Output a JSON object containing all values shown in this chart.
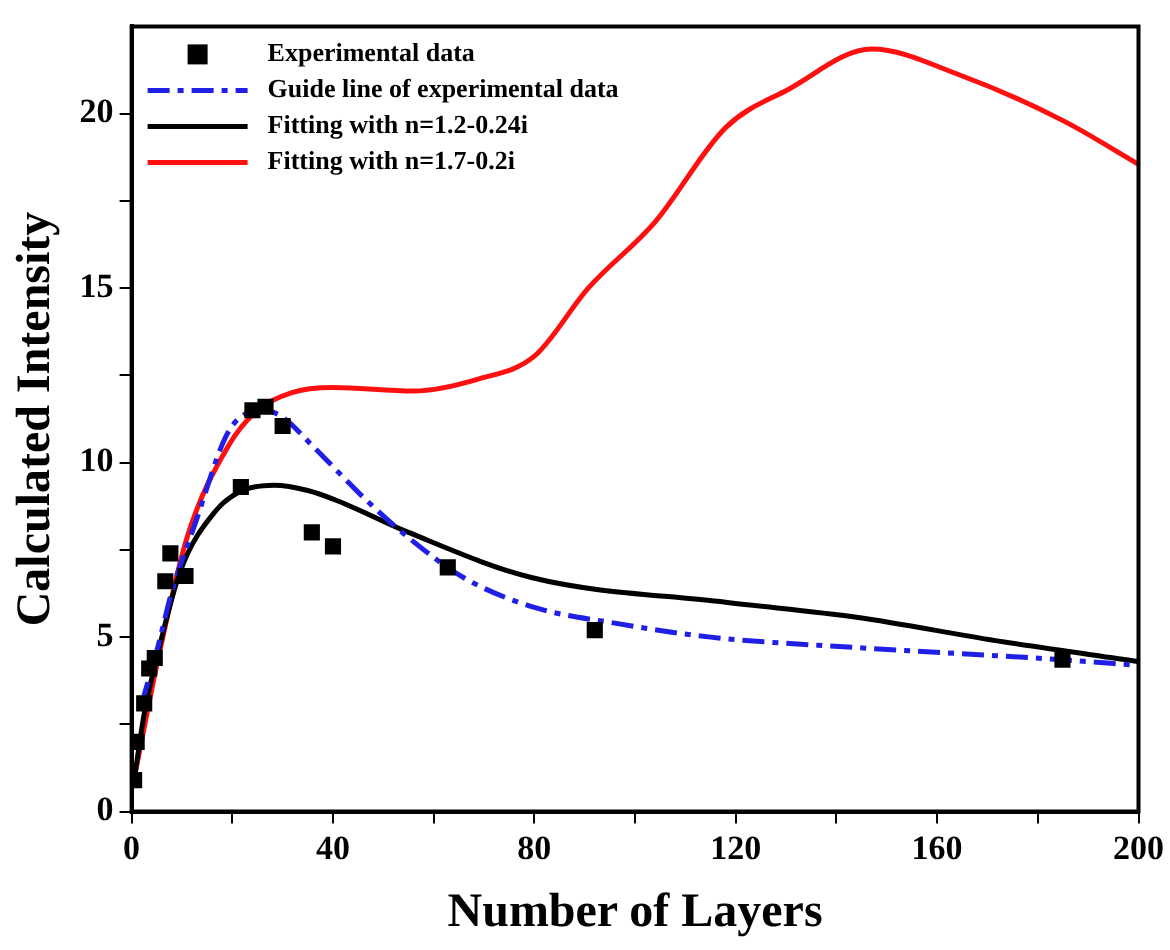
{
  "chart_data": {
    "type": "line",
    "xlabel": "Number of Layers",
    "ylabel": "Calculated Intensity",
    "xlim": [
      0,
      200
    ],
    "ylim": [
      0,
      22.5
    ],
    "xticks": [
      0,
      {
        "value": 20,
        "label": null
      },
      40,
      {
        "value": 60,
        "label": null
      },
      80,
      {
        "value": 100,
        "label": null
      },
      120,
      {
        "value": 140,
        "label": null
      },
      160,
      {
        "value": 180,
        "label": null
      },
      200
    ],
    "yticks": [
      0,
      {
        "value": 2.5,
        "label": null
      },
      5,
      {
        "value": 7.5,
        "label": null
      },
      10,
      {
        "value": 12.5,
        "label": null
      },
      15,
      {
        "value": 17.5,
        "label": null
      },
      20
    ],
    "grid": false,
    "legend": "top left",
    "series": [
      {
        "name": "Experimental data",
        "type": "scatter",
        "marker": "square",
        "color": "#000000",
        "x": [
          0.5,
          1,
          2.5,
          3.5,
          4.6,
          6.7,
          7.7,
          10.7,
          21.7,
          24,
          26.6,
          30,
          35.8,
          40,
          62.8,
          92,
          184.9
        ],
        "values": [
          0.9,
          2.0,
          3.1,
          4.1,
          4.4,
          6.6,
          7.4,
          6.75,
          9.3,
          11.5,
          11.6,
          11.05,
          8.0,
          7.6,
          7.0,
          5.2,
          4.35
        ]
      },
      {
        "name": "Guide line of experimental data",
        "line_style": "dashed",
        "marker": "none",
        "color": "#1f1fe6",
        "x": [
          2,
          5,
          8,
          12.5,
          19.3,
          26,
          30,
          35.8,
          46.8,
          55,
          66,
          80,
          96,
          115,
          144,
          185,
          199
        ],
        "values": [
          3.1,
          4.6,
          6.3,
          8.2,
          10.9,
          11.5,
          11.3,
          10.5,
          8.9,
          7.85,
          6.7,
          5.85,
          5.4,
          5.0,
          4.7,
          4.35,
          4.2
        ]
      },
      {
        "name": "Fitting with n=1.2-0.24i",
        "line_style": "solid",
        "marker": "none",
        "color": "#000000",
        "x": [
          0.5,
          2.5,
          4.9,
          9.7,
          16.6,
          22,
          28.3,
          35,
          41,
          55,
          79.6,
          118,
          144,
          171.6,
          200
        ],
        "values": [
          0.9,
          2.8,
          4.35,
          6.9,
          8.6,
          9.2,
          9.35,
          9.2,
          8.9,
          8.0,
          6.7,
          6.0,
          5.57,
          4.9,
          4.3
        ]
      },
      {
        "name": "Fitting with n=1.7-0.2i",
        "line_style": "solid",
        "marker": "none",
        "color": "#ff1010",
        "x": [
          0.5,
          5.6,
          11,
          19.3,
          25,
          31.7,
          40,
          56,
          69,
          80,
          90.7,
          104,
          118,
          130.5,
          147,
          164.6,
          185,
          200
        ],
        "values": [
          0.95,
          4.6,
          7.85,
          10.5,
          11.5,
          12.0,
          12.15,
          12.05,
          12.4,
          13.05,
          15.0,
          16.9,
          19.6,
          20.7,
          21.85,
          21.1,
          19.8,
          18.55
        ]
      }
    ]
  }
}
